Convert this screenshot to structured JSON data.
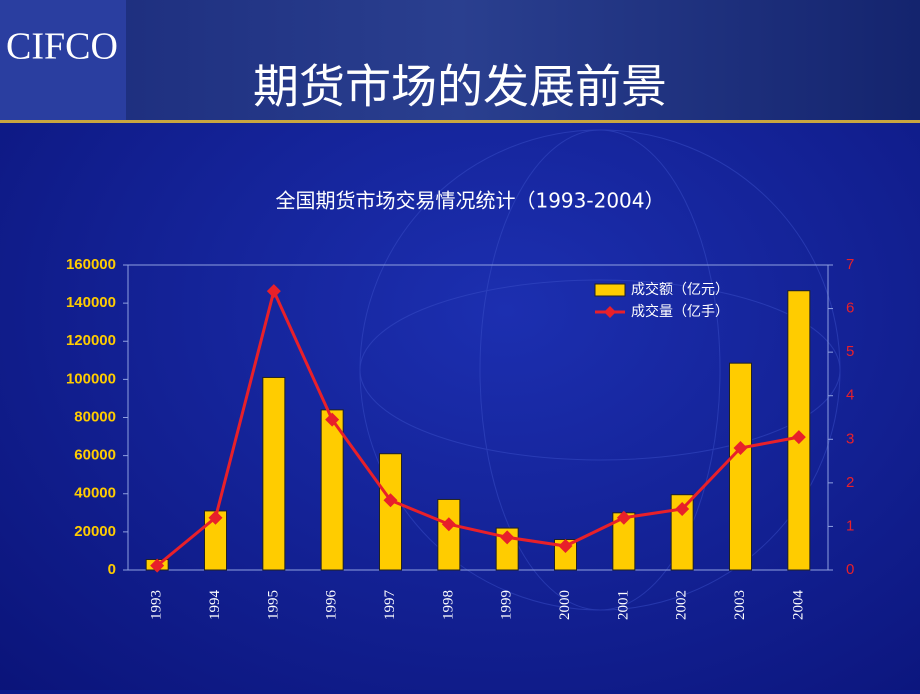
{
  "header": {
    "logo": "CIFCO",
    "title": "期货市场的发展前景"
  },
  "chart_data": {
    "type": "bar",
    "title": "全国期货市场交易情况统计（1993-2004）",
    "categories": [
      "1993",
      "1994",
      "1995",
      "1996",
      "1997",
      "1998",
      "1999",
      "2000",
      "2001",
      "2002",
      "2003",
      "2004"
    ],
    "series": [
      {
        "name": "成交额（亿元）",
        "type": "bar",
        "color": "#ffcc00",
        "values": [
          5500,
          31000,
          101000,
          84000,
          61000,
          37000,
          22000,
          16000,
          30000,
          39500,
          108500,
          146500
        ]
      },
      {
        "name": "成交量（亿手）",
        "type": "line",
        "axis": "y2",
        "color": "#e8202a",
        "values": [
          0.1,
          1.2,
          6.4,
          3.45,
          1.6,
          1.05,
          0.75,
          0.55,
          1.2,
          1.4,
          2.8,
          3.05
        ]
      }
    ],
    "ylim": [
      0,
      160000
    ],
    "yticks": [
      0,
      20000,
      40000,
      60000,
      80000,
      100000,
      120000,
      140000,
      160000
    ],
    "y2lim": [
      0,
      7
    ],
    "y2ticks": [
      0,
      1,
      2,
      3,
      4,
      5,
      6,
      7
    ],
    "legend": "top-right"
  }
}
